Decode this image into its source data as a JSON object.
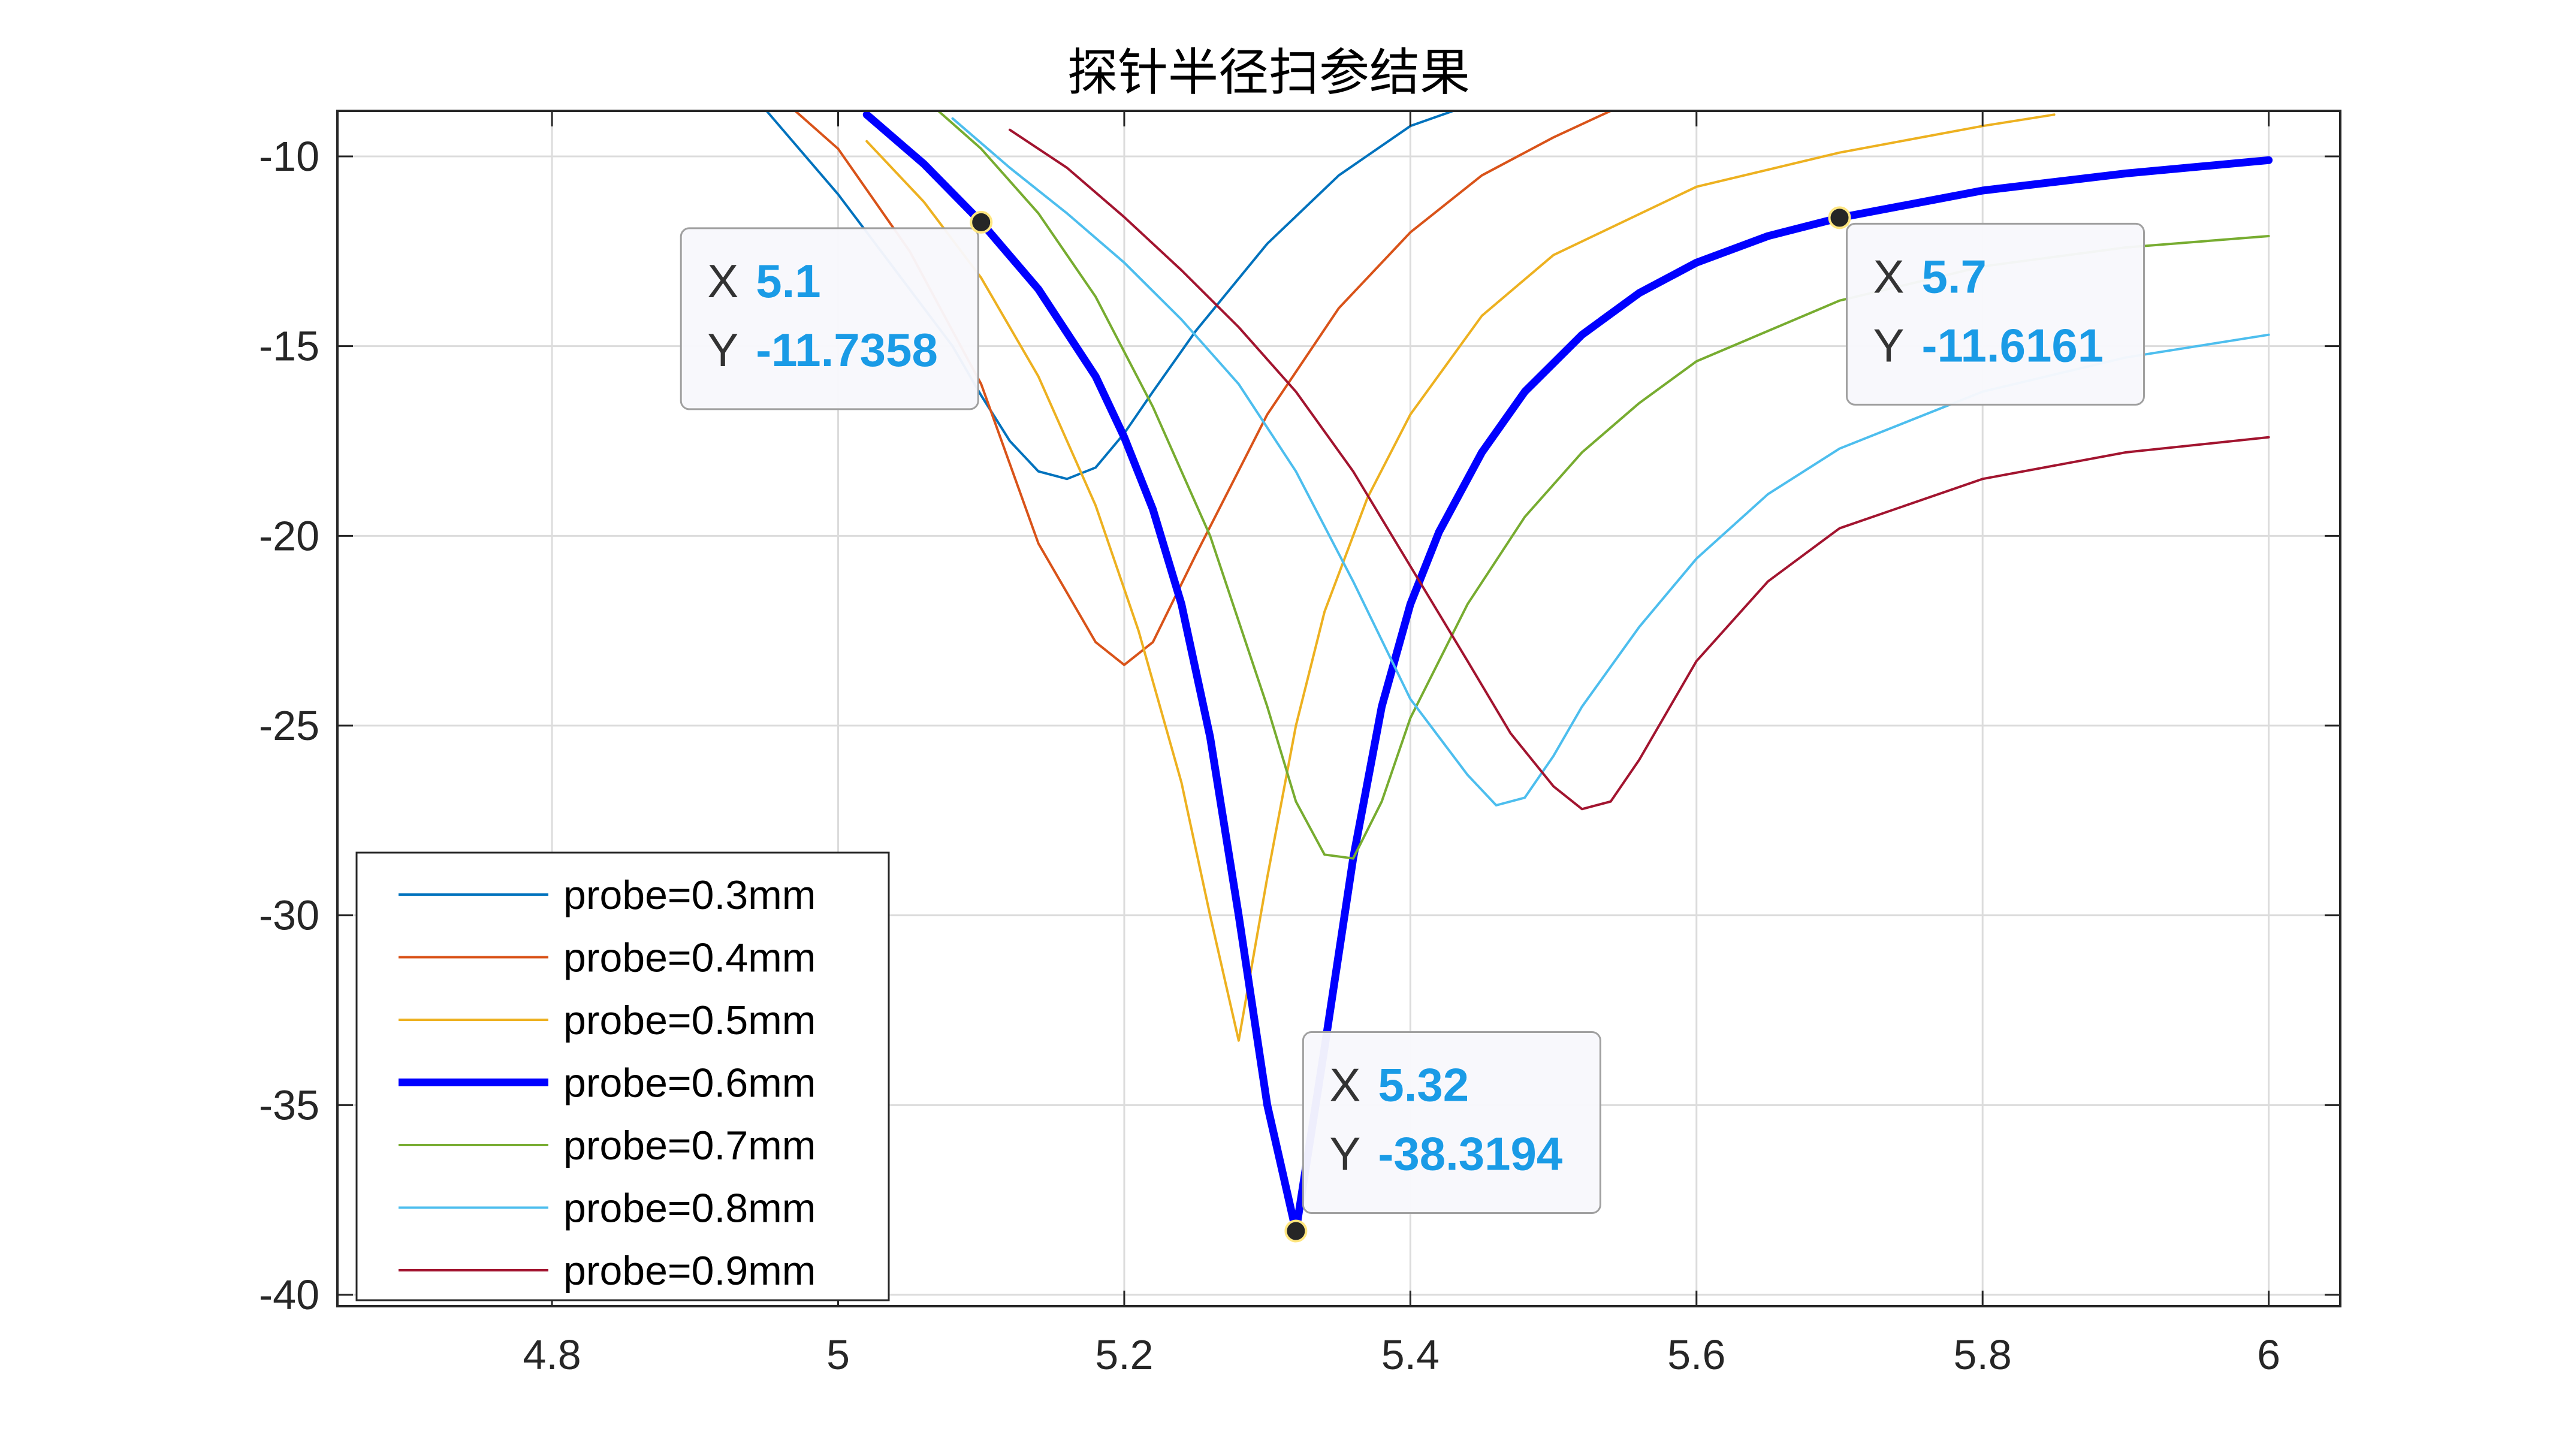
{
  "chart_data": {
    "type": "line",
    "title": "探针半径扫参结果",
    "xlabel": "",
    "ylabel": "",
    "xlim": [
      4.65,
      6.05
    ],
    "ylim": [
      -40.3,
      -8.8
    ],
    "xticks": [
      4.8,
      5,
      5.2,
      5.4,
      5.6,
      5.8,
      6
    ],
    "xtick_labels": [
      "4.8",
      "5",
      "5.2",
      "5.4",
      "5.6",
      "5.8",
      "6"
    ],
    "yticks": [
      -40,
      -35,
      -30,
      -25,
      -20,
      -15,
      -10
    ],
    "ytick_labels": [
      "-40",
      "-35",
      "-30",
      "-25",
      "-20",
      "-15",
      "-10"
    ],
    "grid": true,
    "legend_position": "bottom-left",
    "series": [
      {
        "name": "probe=0.3mm",
        "color": "#0072bd",
        "width": 1,
        "x": [
          4.95,
          5.0,
          5.04,
          5.08,
          5.1,
          5.12,
          5.14,
          5.16,
          5.18,
          5.2,
          5.22,
          5.25,
          5.3,
          5.35,
          5.4,
          5.43
        ],
        "y": [
          -8.8,
          -11.0,
          -13.0,
          -15.0,
          -16.3,
          -17.5,
          -18.3,
          -18.5,
          -18.2,
          -17.3,
          -16.2,
          -14.6,
          -12.3,
          -10.5,
          -9.2,
          -8.8
        ]
      },
      {
        "name": "probe=0.4mm",
        "color": "#d95319",
        "width": 1,
        "x": [
          4.97,
          5.0,
          5.05,
          5.1,
          5.14,
          5.18,
          5.2,
          5.22,
          5.25,
          5.3,
          5.35,
          5.4,
          5.45,
          5.5,
          5.54
        ],
        "y": [
          -8.8,
          -9.8,
          -12.5,
          -16.0,
          -20.2,
          -22.8,
          -23.4,
          -22.8,
          -20.5,
          -16.8,
          -14.0,
          -12.0,
          -10.5,
          -9.5,
          -8.8
        ]
      },
      {
        "name": "probe=0.5mm",
        "color": "#edb120",
        "width": 1,
        "x": [
          5.02,
          5.06,
          5.1,
          5.14,
          5.18,
          5.21,
          5.24,
          5.26,
          5.28,
          5.3,
          5.32,
          5.34,
          5.37,
          5.4,
          5.45,
          5.5,
          5.6,
          5.7,
          5.8,
          5.85
        ],
        "y": [
          -9.6,
          -11.2,
          -13.2,
          -15.8,
          -19.2,
          -22.5,
          -26.5,
          -30.0,
          -33.3,
          -29.0,
          -25.0,
          -22.0,
          -19.0,
          -16.8,
          -14.2,
          -12.6,
          -10.8,
          -9.9,
          -9.2,
          -8.9
        ]
      },
      {
        "name": "probe=0.6mm",
        "color": "#0000ff",
        "width": 4,
        "x": [
          5.02,
          5.06,
          5.1,
          5.14,
          5.18,
          5.2,
          5.22,
          5.24,
          5.26,
          5.28,
          5.3,
          5.32,
          5.34,
          5.36,
          5.38,
          5.4,
          5.42,
          5.45,
          5.48,
          5.52,
          5.56,
          5.6,
          5.65,
          5.7,
          5.8,
          5.9,
          6.0
        ],
        "y": [
          -8.9,
          -10.2,
          -11.7358,
          -13.5,
          -15.8,
          -17.4,
          -19.3,
          -21.8,
          -25.3,
          -30.0,
          -35.0,
          -38.3194,
          -33.5,
          -28.5,
          -24.5,
          -21.8,
          -19.9,
          -17.8,
          -16.2,
          -14.7,
          -13.6,
          -12.8,
          -12.1,
          -11.6161,
          -10.9,
          -10.45,
          -10.1
        ]
      },
      {
        "name": "probe=0.7mm",
        "color": "#77ac30",
        "width": 1,
        "x": [
          5.07,
          5.1,
          5.14,
          5.18,
          5.22,
          5.26,
          5.3,
          5.32,
          5.34,
          5.36,
          5.38,
          5.4,
          5.44,
          5.48,
          5.52,
          5.56,
          5.6,
          5.7,
          5.8,
          5.9,
          6.0
        ],
        "y": [
          -8.8,
          -9.8,
          -11.5,
          -13.7,
          -16.6,
          -20.0,
          -24.5,
          -27.0,
          -28.4,
          -28.5,
          -27.0,
          -24.8,
          -21.8,
          -19.5,
          -17.8,
          -16.5,
          -15.4,
          -13.8,
          -12.9,
          -12.4,
          -12.1
        ]
      },
      {
        "name": "probe=0.8mm",
        "color": "#4dbeee",
        "width": 1,
        "x": [
          5.08,
          5.12,
          5.16,
          5.2,
          5.24,
          5.28,
          5.32,
          5.36,
          5.4,
          5.42,
          5.44,
          5.46,
          5.48,
          5.5,
          5.52,
          5.56,
          5.6,
          5.65,
          5.7,
          5.8,
          5.9,
          6.0
        ],
        "y": [
          -9.0,
          -10.3,
          -11.5,
          -12.8,
          -14.3,
          -16.0,
          -18.3,
          -21.2,
          -24.3,
          -25.3,
          -26.3,
          -27.1,
          -26.9,
          -25.8,
          -24.5,
          -22.4,
          -20.6,
          -18.9,
          -17.7,
          -16.2,
          -15.3,
          -14.7
        ]
      },
      {
        "name": "probe=0.9mm",
        "color": "#a2142f",
        "width": 1,
        "x": [
          5.12,
          5.16,
          5.2,
          5.24,
          5.28,
          5.32,
          5.36,
          5.4,
          5.44,
          5.47,
          5.5,
          5.52,
          5.54,
          5.56,
          5.6,
          5.65,
          5.7,
          5.8,
          5.9,
          6.0
        ],
        "y": [
          -9.3,
          -10.3,
          -11.6,
          -13.0,
          -14.5,
          -16.2,
          -18.3,
          -20.8,
          -23.3,
          -25.2,
          -26.6,
          -27.2,
          -27.0,
          -25.9,
          -23.3,
          -21.2,
          -19.8,
          -18.5,
          -17.8,
          -17.4
        ]
      }
    ],
    "datatips": [
      {
        "x_key": "X",
        "y_key": "Y",
        "x_text": "5.1",
        "y_text": "-11.7358",
        "x": 5.1,
        "y": -11.7358,
        "box_side": "left"
      },
      {
        "x_key": "X",
        "y_key": "Y",
        "x_text": "5.32",
        "y_text": "-38.3194",
        "x": 5.32,
        "y": -38.3194,
        "box_side": "right"
      },
      {
        "x_key": "X",
        "y_key": "Y",
        "x_text": "5.7",
        "y_text": "-11.6161",
        "x": 5.7,
        "y": -11.6161,
        "box_side": "right"
      }
    ]
  }
}
